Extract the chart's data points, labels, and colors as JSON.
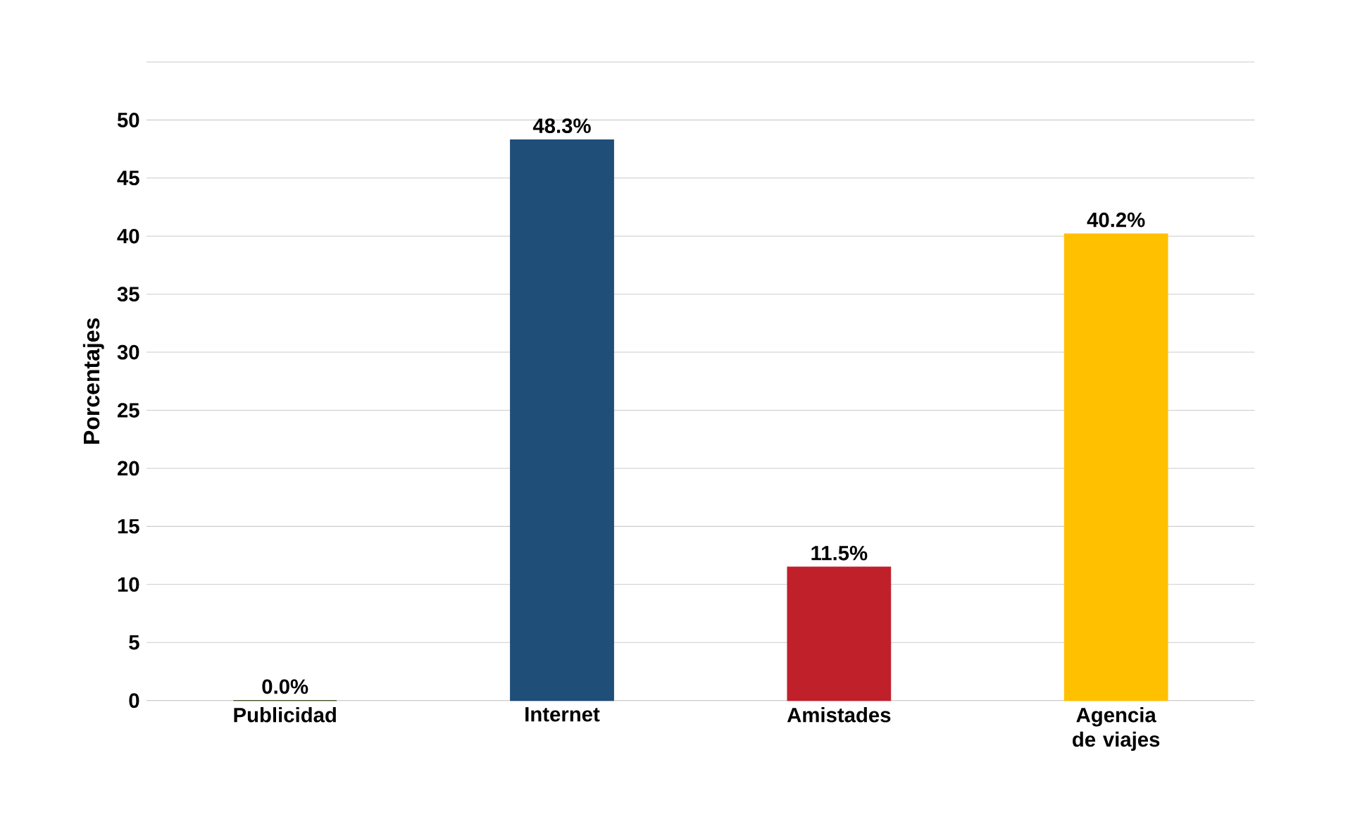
{
  "chart_data": {
    "type": "bar",
    "ylabel": "Porcentajes",
    "categories": [
      "Publicidad",
      "Internet",
      "Amistades",
      "Agencia de viajes"
    ],
    "values": [
      0.0,
      48.3,
      11.5,
      40.2
    ],
    "colors": [
      "#3a4a1e",
      "#1f4e79",
      "#c0202a",
      "#ffc000"
    ],
    "value_labels": [
      "0.0%",
      "48.3%",
      "11.5%",
      "40.2%"
    ],
    "ylim": [
      0,
      55
    ],
    "yticks": [
      0,
      5,
      10,
      15,
      20,
      25,
      30,
      35,
      40,
      45,
      50,
      {
        "value": 55,
        "label": null
      }
    ],
    "grid": "y"
  }
}
